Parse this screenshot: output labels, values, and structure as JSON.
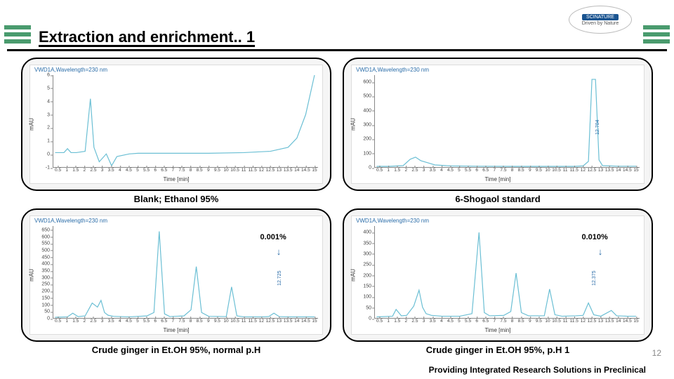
{
  "page": {
    "title": "Extraction and enrichment.. 1",
    "footer": "Providing Integrated Research Solutions in Preclinical",
    "page_number": "12",
    "logo_main": "SCINATURE",
    "logo_sub": "Driven by Nature"
  },
  "charts": {
    "tl": {
      "title": "VWD1A,Wavelength=230 nm",
      "caption": "Blank; Ethanol 95%",
      "ylabel": "mAU",
      "xlabel": "Time [min]",
      "ylim": [
        -1,
        6
      ],
      "yticks": [
        -1,
        0,
        1,
        2,
        3,
        4,
        5,
        6
      ],
      "xlim": [
        0.2,
        15.2
      ],
      "xticks": [
        0.5,
        1,
        1.5,
        2,
        2.5,
        3,
        3.5,
        4,
        4.5,
        5,
        5.5,
        6,
        6.5,
        7,
        7.5,
        8,
        8.5,
        9,
        9.5,
        10,
        10.5,
        11,
        11.5,
        12,
        12.5,
        13,
        13.5,
        14,
        14.5,
        15
      ],
      "line_color": "#6bbfd4",
      "line_width": 1.2,
      "series": [
        [
          0.3,
          0.1
        ],
        [
          0.8,
          0.1
        ],
        [
          1.0,
          0.4
        ],
        [
          1.2,
          0.1
        ],
        [
          1.5,
          0.1
        ],
        [
          2.0,
          0.2
        ],
        [
          2.3,
          4.2
        ],
        [
          2.5,
          0.5
        ],
        [
          2.8,
          -0.6
        ],
        [
          3.2,
          0.0
        ],
        [
          3.5,
          -0.9
        ],
        [
          3.8,
          -0.2
        ],
        [
          4.5,
          0.0
        ],
        [
          5.0,
          0.05
        ],
        [
          7.0,
          0.05
        ],
        [
          9.0,
          0.05
        ],
        [
          11.0,
          0.1
        ],
        [
          12.5,
          0.2
        ],
        [
          13.5,
          0.5
        ],
        [
          14.0,
          1.2
        ],
        [
          14.5,
          3.0
        ],
        [
          15.0,
          6.0
        ]
      ]
    },
    "tr": {
      "title": "VWD1A,Wavelength=230 nm",
      "caption": "6-Shogaol standard",
      "ylabel": "mAU",
      "xlabel": "Time [min]",
      "ylim": [
        0,
        650
      ],
      "yticks": [
        0,
        100,
        200,
        300,
        400,
        500,
        600
      ],
      "xlim": [
        0.2,
        15.2
      ],
      "xticks": [
        0.5,
        1,
        1.5,
        2,
        2.5,
        3,
        3.5,
        4,
        4.5,
        5,
        5.5,
        6,
        6.5,
        7,
        7.5,
        8,
        8.5,
        9,
        9.5,
        10,
        10.5,
        11,
        11.5,
        12,
        12.5,
        13,
        13.5,
        14,
        14.5,
        15
      ],
      "line_color": "#6bbfd4",
      "line_width": 1.2,
      "series": [
        [
          0.3,
          5
        ],
        [
          1.0,
          5
        ],
        [
          1.8,
          10
        ],
        [
          2.2,
          55
        ],
        [
          2.5,
          70
        ],
        [
          2.8,
          45
        ],
        [
          3.2,
          30
        ],
        [
          3.6,
          15
        ],
        [
          4.5,
          8
        ],
        [
          6,
          6
        ],
        [
          8,
          5
        ],
        [
          10,
          5
        ],
        [
          11.5,
          5
        ],
        [
          12.0,
          8
        ],
        [
          12.3,
          40
        ],
        [
          12.5,
          620
        ],
        [
          12.7,
          620
        ],
        [
          12.9,
          50
        ],
        [
          13.1,
          10
        ],
        [
          14,
          6
        ],
        [
          15,
          6
        ]
      ],
      "rt_label": "12.704",
      "rt_pos_x": 12.55
    },
    "bl": {
      "title": "VWD1A,Wavelength=230 nm",
      "caption": "Crude ginger in Et.OH 95%, normal p.H",
      "ylabel": "mAU",
      "xlabel": "Time [min]",
      "ylim": [
        0,
        680
      ],
      "yticks": [
        0,
        50,
        100,
        150,
        200,
        250,
        300,
        350,
        400,
        450,
        500,
        550,
        600,
        650
      ],
      "xlim": [
        0.2,
        15.2
      ],
      "xticks": [
        0.5,
        1,
        1.5,
        2,
        2.5,
        3,
        3.5,
        4,
        4.5,
        5,
        5.5,
        6,
        6.5,
        7,
        7.5,
        8,
        8.5,
        9,
        9.5,
        10,
        10.5,
        11,
        11.5,
        12,
        12.5,
        13,
        13.5,
        14,
        14.5,
        15
      ],
      "line_color": "#6bbfd4",
      "line_width": 1.2,
      "series": [
        [
          0.3,
          5
        ],
        [
          1.0,
          8
        ],
        [
          1.3,
          35
        ],
        [
          1.6,
          10
        ],
        [
          2.0,
          15
        ],
        [
          2.4,
          110
        ],
        [
          2.7,
          80
        ],
        [
          2.9,
          130
        ],
        [
          3.1,
          40
        ],
        [
          3.3,
          20
        ],
        [
          3.6,
          12
        ],
        [
          4.0,
          10
        ],
        [
          4.5,
          8
        ],
        [
          5.5,
          15
        ],
        [
          5.9,
          40
        ],
        [
          6.2,
          640
        ],
        [
          6.5,
          30
        ],
        [
          6.8,
          10
        ],
        [
          7.6,
          15
        ],
        [
          8.0,
          60
        ],
        [
          8.3,
          380
        ],
        [
          8.6,
          40
        ],
        [
          9.0,
          12
        ],
        [
          10.0,
          10
        ],
        [
          10.3,
          230
        ],
        [
          10.6,
          15
        ],
        [
          11.0,
          8
        ],
        [
          12.0,
          8
        ],
        [
          12.4,
          10
        ],
        [
          12.7,
          35
        ],
        [
          13.0,
          10
        ],
        [
          13.5,
          8
        ],
        [
          14.5,
          8
        ],
        [
          15,
          8
        ]
      ],
      "annotation": "0.001%",
      "rt_label": "12.725",
      "rt_pos_x": 12.75
    },
    "br": {
      "title": "VWD1A,Wavelength=230 nm",
      "caption": "Crude ginger in Et.OH 95%, p.H 1",
      "ylabel": "mAU",
      "xlabel": "Time [min]",
      "ylim": [
        0,
        430
      ],
      "yticks": [
        0,
        50,
        100,
        150,
        200,
        250,
        300,
        350,
        400
      ],
      "xlim": [
        0.2,
        15.2
      ],
      "xticks": [
        0.5,
        1,
        1.5,
        2,
        2.5,
        3,
        3.5,
        4,
        4.5,
        5,
        5.5,
        6,
        6.5,
        7,
        7.5,
        8,
        8.5,
        9,
        9.5,
        10,
        10.5,
        11,
        11.5,
        12,
        12.5,
        13,
        13.5,
        14,
        14.5,
        15
      ],
      "line_color": "#6bbfd4",
      "line_width": 1.2,
      "series": [
        [
          0.3,
          5
        ],
        [
          1.2,
          8
        ],
        [
          1.4,
          40
        ],
        [
          1.7,
          10
        ],
        [
          2.0,
          12
        ],
        [
          2.4,
          55
        ],
        [
          2.7,
          130
        ],
        [
          2.9,
          50
        ],
        [
          3.1,
          20
        ],
        [
          3.4,
          12
        ],
        [
          4.0,
          8
        ],
        [
          5.0,
          8
        ],
        [
          5.7,
          20
        ],
        [
          6.1,
          400
        ],
        [
          6.4,
          25
        ],
        [
          6.7,
          10
        ],
        [
          7.5,
          12
        ],
        [
          7.9,
          30
        ],
        [
          8.2,
          210
        ],
        [
          8.5,
          25
        ],
        [
          8.9,
          10
        ],
        [
          9.8,
          10
        ],
        [
          10.1,
          135
        ],
        [
          10.4,
          15
        ],
        [
          10.8,
          8
        ],
        [
          11.6,
          10
        ],
        [
          12.0,
          12
        ],
        [
          12.3,
          70
        ],
        [
          12.6,
          15
        ],
        [
          13.0,
          8
        ],
        [
          13.6,
          35
        ],
        [
          13.9,
          10
        ],
        [
          14.5,
          8
        ],
        [
          15,
          8
        ]
      ],
      "annotation": "0.010%",
      "rt_label": "12.375",
      "rt_pos_x": 12.35
    }
  },
  "style": {
    "accent": "#4a9b6e",
    "panel_bg": "#f5f5f5",
    "panel_border": "#000000"
  }
}
